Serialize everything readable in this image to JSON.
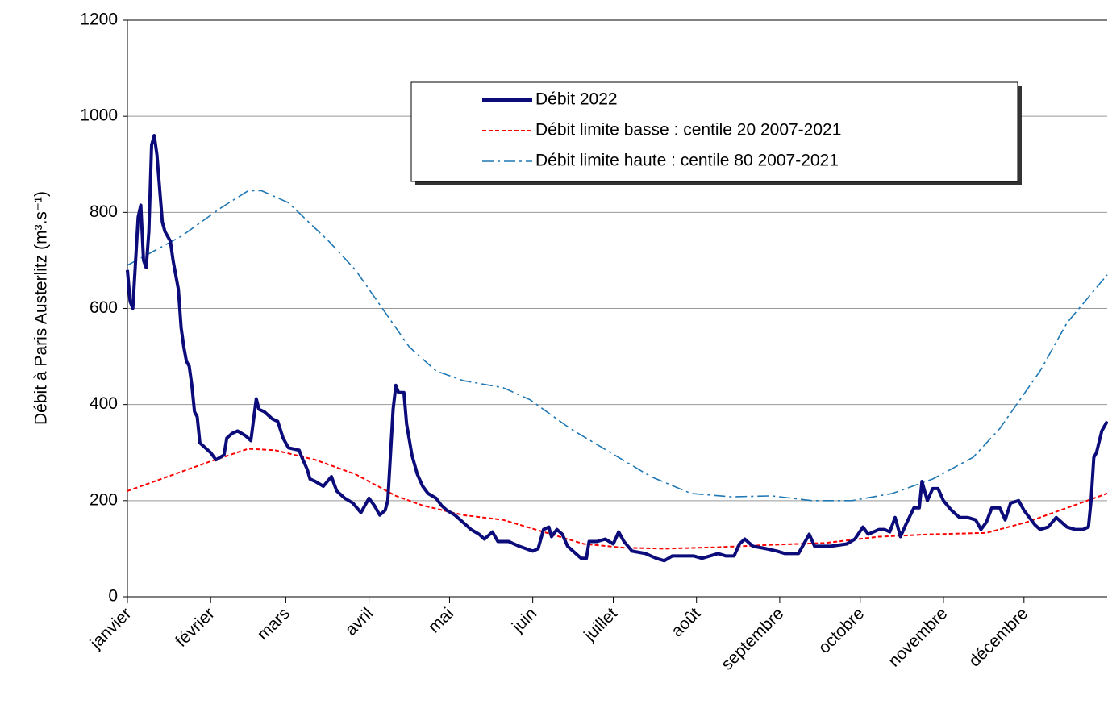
{
  "chart_data": {
    "type": "line",
    "ylabel": "Débit à Paris Austerlitz (m³.s⁻¹)",
    "xlim": [
      0,
      365
    ],
    "ylim": [
      0,
      1200
    ],
    "yticks": [
      0,
      200,
      400,
      600,
      800,
      1000,
      1200
    ],
    "xticks": [
      {
        "value": 0,
        "label": "janvier"
      },
      {
        "value": 31,
        "label": "février"
      },
      {
        "value": 59,
        "label": "mars"
      },
      {
        "value": 90,
        "label": "avril"
      },
      {
        "value": 120,
        "label": "mai"
      },
      {
        "value": 151,
        "label": "juin"
      },
      {
        "value": 181,
        "label": "juillet"
      },
      {
        "value": 212,
        "label": "août"
      },
      {
        "value": 243,
        "label": "septembre"
      },
      {
        "value": 273,
        "label": "octobre"
      },
      {
        "value": 304,
        "label": "novembre"
      },
      {
        "value": 334,
        "label": "décembre"
      }
    ],
    "grid": true,
    "legend": "upper right",
    "series": [
      {
        "name": "Débit 2022",
        "color": "#0b0b7a",
        "dash": "solid",
        "x": [
          0,
          1,
          2,
          4,
          5,
          6,
          7,
          8,
          9,
          10,
          11,
          13,
          14,
          16,
          17,
          19,
          20,
          21,
          22,
          23,
          24,
          25,
          26,
          27,
          29,
          31,
          33,
          36,
          37,
          39,
          41,
          44,
          46,
          48,
          49,
          51,
          54,
          56,
          58,
          60,
          64,
          65,
          67,
          68,
          70,
          73,
          76,
          78,
          81,
          84,
          87,
          90,
          92,
          94,
          96,
          97,
          99,
          100,
          101,
          103,
          104,
          106,
          108,
          110,
          112,
          115,
          117,
          119,
          122,
          125,
          128,
          131,
          133,
          136,
          138,
          142,
          146,
          151,
          153,
          155,
          157,
          158,
          160,
          162,
          164,
          166,
          169,
          171,
          172,
          175,
          178,
          181,
          183,
          185,
          188,
          193,
          197,
          200,
          203,
          208,
          211,
          214,
          217,
          220,
          223,
          226,
          228,
          230,
          233,
          238,
          242,
          245,
          250,
          254,
          256,
          262,
          268,
          271,
          274,
          276,
          280,
          282,
          284,
          286,
          288,
          290,
          293,
          295,
          296,
          298,
          300,
          302,
          304,
          307,
          310,
          313,
          316,
          318,
          320,
          322,
          325,
          327,
          329,
          332,
          334,
          336,
          338,
          340,
          343,
          346,
          348,
          350,
          353,
          356,
          358,
          359,
          360,
          361,
          363,
          365
        ],
        "values": [
          680,
          615,
          600,
          790,
          815,
          700,
          685,
          760,
          940,
          960,
          920,
          780,
          760,
          740,
          700,
          640,
          560,
          520,
          490,
          480,
          440,
          385,
          375,
          320,
          310,
          300,
          285,
          295,
          330,
          340,
          345,
          335,
          325,
          412,
          390,
          385,
          370,
          365,
          330,
          310,
          305,
          290,
          265,
          245,
          240,
          230,
          250,
          220,
          205,
          195,
          175,
          205,
          190,
          170,
          180,
          200,
          390,
          440,
          425,
          425,
          360,
          295,
          255,
          230,
          215,
          205,
          190,
          180,
          170,
          155,
          140,
          130,
          120,
          135,
          115,
          115,
          105,
          95,
          100,
          140,
          145,
          125,
          140,
          130,
          105,
          95,
          80,
          80,
          115,
          115,
          120,
          110,
          135,
          115,
          95,
          90,
          80,
          75,
          85,
          85,
          85,
          80,
          85,
          90,
          85,
          85,
          110,
          120,
          105,
          100,
          95,
          90,
          90,
          130,
          105,
          105,
          110,
          120,
          145,
          130,
          140,
          140,
          135,
          165,
          125,
          150,
          185,
          185,
          240,
          200,
          225,
          225,
          200,
          180,
          165,
          165,
          160,
          140,
          155,
          185,
          185,
          160,
          195,
          200,
          180,
          165,
          150,
          140,
          145,
          165,
          155,
          145,
          140,
          140,
          145,
          200,
          290,
          300,
          345,
          365
        ]
      },
      {
        "name": "Débit limite basse : centile 20 2007-2021",
        "color": "#ff0000",
        "dash": "dashed",
        "x": [
          0,
          30,
          45,
          55,
          70,
          85,
          100,
          110,
          125,
          140,
          155,
          170,
          185,
          200,
          220,
          240,
          260,
          280,
          300,
          320,
          335,
          350,
          365
        ],
        "values": [
          220,
          280,
          308,
          305,
          285,
          255,
          210,
          190,
          170,
          160,
          135,
          110,
          102,
          100,
          103,
          108,
          112,
          125,
          130,
          133,
          155,
          185,
          215
        ]
      },
      {
        "name": "Débit limite haute : centile 80 2007-2021",
        "color": "#1f77b4",
        "dash": "dashdot",
        "x": [
          0,
          20,
          35,
          45,
          50,
          60,
          75,
          85,
          95,
          105,
          115,
          125,
          140,
          150,
          165,
          180,
          195,
          210,
          225,
          240,
          255,
          270,
          285,
          300,
          315,
          325,
          340,
          350,
          365
        ],
        "values": [
          690,
          750,
          810,
          845,
          845,
          820,
          740,
          680,
          600,
          520,
          470,
          450,
          435,
          410,
          350,
          300,
          250,
          215,
          208,
          210,
          200,
          200,
          215,
          245,
          290,
          350,
          470,
          570,
          670
        ]
      }
    ]
  }
}
